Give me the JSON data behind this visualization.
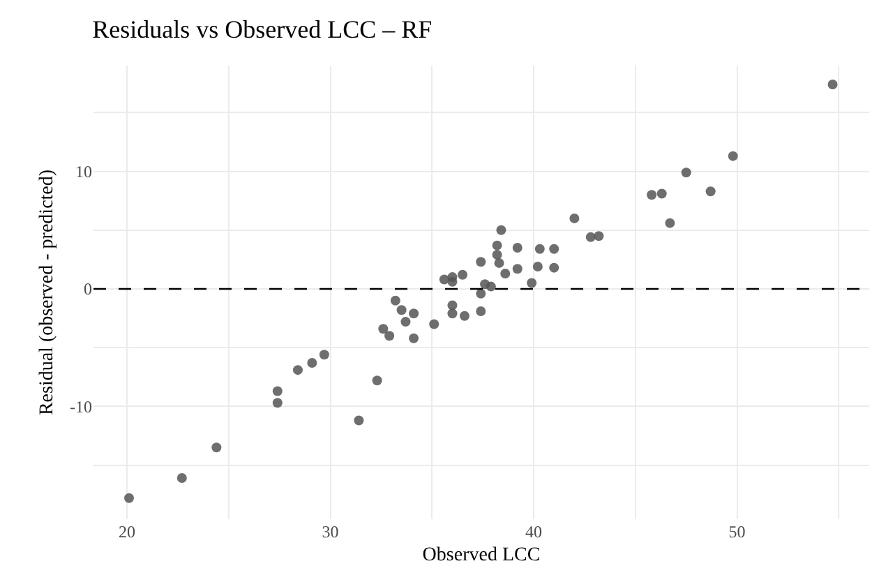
{
  "chart_data": {
    "type": "scatter",
    "title": "Residuals vs Observed LCC – RF",
    "xlabel": "Observed LCC",
    "ylabel": "Residual (observed - predicted)",
    "x": [
      20.1,
      22.7,
      24.4,
      27.4,
      27.4,
      28.4,
      29.1,
      29.7,
      31.4,
      32.3,
      32.6,
      32.9,
      33.2,
      33.5,
      33.7,
      34.0,
      34.1,
      34.1,
      35.1,
      35.6,
      36.0,
      36.0,
      36.0,
      36.0,
      36.5,
      36.6,
      37.4,
      37.4,
      37.4,
      37.6,
      37.9,
      38.1,
      38.2,
      38.2,
      38.3,
      38.4,
      38.6,
      39.1,
      39.2,
      39.2,
      39.9,
      40.2,
      40.3,
      41.0,
      41.0,
      42.0,
      42.8,
      43.2,
      45.8,
      46.3,
      46.7,
      47.5,
      48.7,
      49.8,
      54.7
    ],
    "series": [
      {
        "color": "#555555",
        "values": [
          -17.8,
          -16.1,
          -13.5,
          -8.7,
          -9.7,
          -6.9,
          -6.3,
          -5.6,
          -11.2,
          -7.8,
          -3.4,
          -4.0,
          -1.0,
          -1.8,
          -2.8,
          null,
          -2.1,
          -4.2,
          -3.0,
          0.8,
          1.0,
          0.6,
          -1.4,
          -2.1,
          1.2,
          -2.3,
          2.3,
          -0.4,
          -1.9,
          0.4,
          0.2,
          null,
          3.7,
          2.9,
          2.2,
          5.0,
          1.3,
          null,
          3.5,
          1.7,
          0.5,
          1.9,
          3.4,
          3.4,
          1.8,
          6.0,
          4.4,
          4.5,
          8.0,
          8.1,
          5.6,
          9.9,
          8.3,
          11.3,
          17.4
        ]
      }
    ],
    "xlim": [
      18.35,
      56.5
    ],
    "ylim": [
      -19.6,
      19.0
    ],
    "xticks": [
      20,
      {
        "value": 25,
        "label": null
      },
      30,
      {
        "value": 35,
        "label": null
      },
      40,
      {
        "value": 45,
        "label": null
      },
      50,
      {
        "value": 55,
        "label": null
      }
    ],
    "yticks": [
      {
        "value": -15,
        "label": null
      },
      -10,
      {
        "value": -5,
        "label": null
      },
      0,
      {
        "value": 5,
        "label": null
      },
      10,
      {
        "value": 15,
        "label": null
      }
    ],
    "ref_lines": [
      {
        "axis": "y",
        "value": 0,
        "color": "#000000",
        "line_style": "dashed"
      }
    ],
    "grid": true,
    "marker": "circle"
  }
}
